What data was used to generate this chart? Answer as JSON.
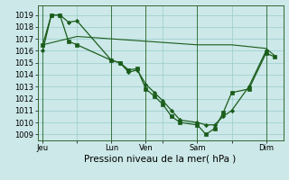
{
  "background_color": "#cce8e8",
  "plot_bg_color": "#cce8e8",
  "grid_color": "#99cccc",
  "line_color": "#1a5c1a",
  "ylim": [
    1008.5,
    1019.8
  ],
  "yticks": [
    1009,
    1010,
    1011,
    1012,
    1013,
    1014,
    1015,
    1016,
    1017,
    1018,
    1019
  ],
  "xlabel": "Pression niveau de la mer( hPa )",
  "xlabel_fontsize": 7.5,
  "tick_fontsize": 6,
  "day_labels": [
    "Jeu",
    "",
    "Lun",
    "Ven",
    "",
    "Sam",
    "",
    "Dim"
  ],
  "day_positions": [
    0,
    2,
    4,
    6,
    7,
    9,
    11,
    13
  ],
  "vline_positions": [
    0,
    4,
    6,
    9,
    13
  ],
  "series1_x": [
    0,
    0.5,
    1.0,
    1.5,
    2.0,
    4.0,
    4.5,
    5.0,
    5.5,
    6.0,
    6.5,
    7.0,
    7.5,
    8.0,
    9.0,
    9.5,
    10.0,
    10.5,
    11.0,
    12.0,
    13.0
  ],
  "series1_y": [
    1016.0,
    1019.0,
    1019.0,
    1018.4,
    1018.5,
    1015.2,
    1015.0,
    1014.2,
    1014.4,
    1013.2,
    1012.5,
    1011.8,
    1011.0,
    1010.2,
    1010.0,
    1009.8,
    1009.8,
    1010.5,
    1011.0,
    1013.0,
    1016.0
  ],
  "series2_x": [
    0,
    0.5,
    1.0,
    1.5,
    2.0,
    4.0,
    4.5,
    5.0,
    5.5,
    6.0,
    6.5,
    7.0,
    7.5,
    8.0,
    9.0,
    9.5,
    10.0,
    10.5,
    11.0,
    12.0,
    13.0,
    13.5
  ],
  "series2_y": [
    1016.5,
    1019.0,
    1019.0,
    1016.8,
    1016.5,
    1015.2,
    1015.0,
    1014.4,
    1014.5,
    1012.8,
    1012.2,
    1011.5,
    1010.5,
    1010.0,
    1009.8,
    1009.0,
    1009.5,
    1010.8,
    1012.5,
    1012.8,
    1015.8,
    1015.5
  ],
  "series3_x": [
    0,
    2,
    4,
    6,
    9,
    11,
    13,
    13.5
  ],
  "series3_y": [
    1016.5,
    1017.2,
    1017.0,
    1016.8,
    1016.5,
    1016.5,
    1016.2,
    1015.6
  ]
}
